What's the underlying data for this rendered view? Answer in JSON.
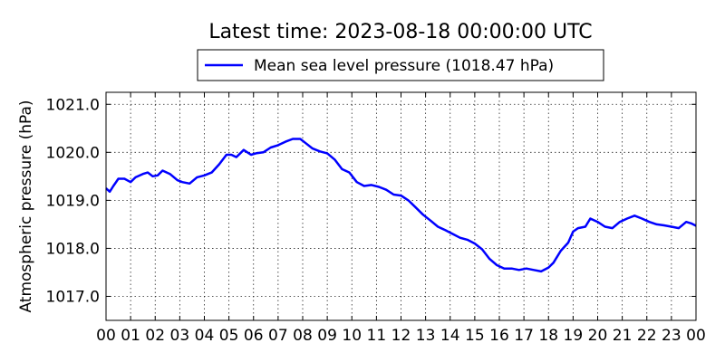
{
  "chart_data": {
    "type": "line",
    "title": "Latest time: 2023-08-18 00:00:00 UTC",
    "xlabel": "",
    "ylabel": "Atmospheric pressure (hPa)",
    "x_unit": "hour (UTC)",
    "xlim": [
      0,
      24
    ],
    "ylim": [
      1016.5,
      1021.25
    ],
    "grid": true,
    "legend_position": "top-center (above plot)",
    "xticks": [
      "00",
      "01",
      "02",
      "03",
      "04",
      "05",
      "06",
      "07",
      "08",
      "09",
      "10",
      "11",
      "12",
      "13",
      "14",
      "15",
      "16",
      "17",
      "18",
      "19",
      "20",
      "21",
      "22",
      "23",
      "00"
    ],
    "yticks": [
      1017.0,
      1018.0,
      1019.0,
      1020.0,
      1021.0
    ],
    "ytick_labels": [
      "1017.0",
      "1018.0",
      "1019.0",
      "1020.0",
      "1021.0"
    ],
    "series": [
      {
        "name": "Mean sea level pressure (1018.47 hPa)",
        "color": "#0000ff",
        "x": [
          0.0,
          0.15,
          0.3,
          0.5,
          0.75,
          1.0,
          1.2,
          1.5,
          1.7,
          1.9,
          2.1,
          2.3,
          2.6,
          2.9,
          3.1,
          3.4,
          3.7,
          4.0,
          4.3,
          4.6,
          4.9,
          5.1,
          5.3,
          5.6,
          5.9,
          6.1,
          6.4,
          6.7,
          7.0,
          7.3,
          7.6,
          7.9,
          8.1,
          8.4,
          8.7,
          9.0,
          9.3,
          9.6,
          9.9,
          10.2,
          10.5,
          10.8,
          11.1,
          11.4,
          11.7,
          12.0,
          12.3,
          12.6,
          12.9,
          13.2,
          13.5,
          13.8,
          14.1,
          14.4,
          14.7,
          15.0,
          15.3,
          15.6,
          15.9,
          16.2,
          16.5,
          16.8,
          17.1,
          17.4,
          17.7,
          18.0,
          18.2,
          18.5,
          18.8,
          19.0,
          19.2,
          19.5,
          19.7,
          20.0,
          20.3,
          20.6,
          20.9,
          21.2,
          21.5,
          21.8,
          22.1,
          22.4,
          22.7,
          23.0,
          23.3,
          23.6,
          23.8,
          24.0
        ],
        "y": [
          1019.25,
          1019.18,
          1019.3,
          1019.45,
          1019.45,
          1019.38,
          1019.48,
          1019.55,
          1019.58,
          1019.5,
          1019.52,
          1019.62,
          1019.55,
          1019.42,
          1019.38,
          1019.35,
          1019.48,
          1019.52,
          1019.58,
          1019.75,
          1019.95,
          1019.95,
          1019.9,
          1020.05,
          1019.95,
          1019.98,
          1020.0,
          1020.1,
          1020.15,
          1020.22,
          1020.28,
          1020.28,
          1020.2,
          1020.08,
          1020.02,
          1019.98,
          1019.85,
          1019.65,
          1019.58,
          1019.38,
          1019.3,
          1019.32,
          1019.28,
          1019.22,
          1019.12,
          1019.1,
          1019.0,
          1018.85,
          1018.7,
          1018.58,
          1018.45,
          1018.38,
          1018.3,
          1018.22,
          1018.18,
          1018.1,
          1017.98,
          1017.78,
          1017.65,
          1017.58,
          1017.58,
          1017.55,
          1017.58,
          1017.55,
          1017.52,
          1017.6,
          1017.7,
          1017.95,
          1018.12,
          1018.35,
          1018.42,
          1018.45,
          1018.62,
          1018.55,
          1018.45,
          1018.42,
          1018.55,
          1018.62,
          1018.68,
          1018.62,
          1018.55,
          1018.5,
          1018.48,
          1018.45,
          1018.42,
          1018.55,
          1018.52,
          1018.47
        ]
      }
    ]
  }
}
